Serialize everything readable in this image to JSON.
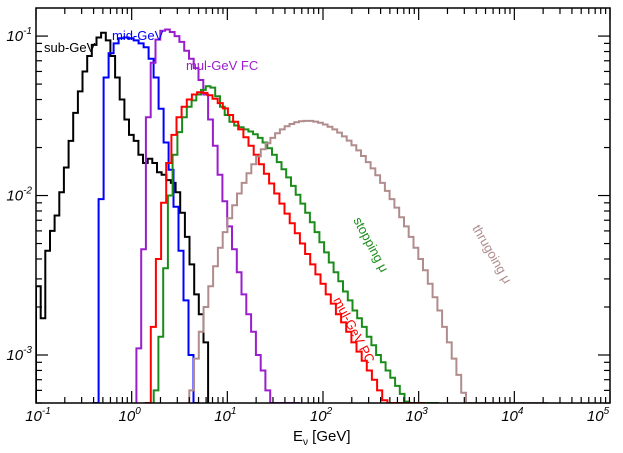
{
  "chart_data": {
    "type": "line",
    "xscale": "log",
    "yscale": "log",
    "xlim": [
      0.1,
      100000
    ],
    "ylim": [
      0.0005,
      0.15
    ],
    "xlabel": "Eν [GeV]",
    "xlabel_main": "E",
    "xlabel_sub": "ν",
    "xlabel_unit": " [GeV]",
    "ylabel": "",
    "grid": false,
    "x_ticks": [
      {
        "base": "10",
        "exp": "-1",
        "value": 0.1
      },
      {
        "base": "10",
        "exp": "0",
        "value": 1
      },
      {
        "base": "10",
        "exp": "1",
        "value": 10
      },
      {
        "base": "10",
        "exp": "2",
        "value": 100
      },
      {
        "base": "10",
        "exp": "3",
        "value": 1000
      },
      {
        "base": "10",
        "exp": "4",
        "value": 10000
      },
      {
        "base": "10",
        "exp": "5",
        "value": 100000
      }
    ],
    "y_ticks": [
      {
        "base": "10",
        "exp": "-3",
        "value": 0.001
      },
      {
        "base": "10",
        "exp": "-2",
        "value": 0.01
      },
      {
        "base": "10",
        "exp": "-1",
        "value": 0.1
      }
    ],
    "series": [
      {
        "name": "sub-GeV",
        "color": "#000000",
        "bins_per_decade": 20,
        "x_start": 0.1,
        "x_end": 6.3,
        "values": [
          0.0027,
          0.0017,
          0.0045,
          0.006,
          0.0075,
          0.0105,
          0.015,
          0.022,
          0.033,
          0.045,
          0.06,
          0.075,
          0.088,
          0.098,
          0.105,
          0.094,
          0.075,
          0.055,
          0.04,
          0.03,
          0.024,
          0.022,
          0.018,
          0.016,
          0.017,
          0.016,
          0.014,
          0.0135,
          0.0125,
          0.012,
          0.0105,
          0.0078,
          0.0055,
          0.0037,
          0.0024,
          0.0018,
          0.0012
        ]
      },
      {
        "name": "mid-GeV",
        "color": "#0000ff",
        "bins_per_decade": 20,
        "x_start": 0.4,
        "x_end": 5.0,
        "values": [
          0.0003,
          0.0095,
          0.055,
          0.078,
          0.09,
          0.097,
          0.098,
          0.097,
          0.094,
          0.09,
          0.085,
          0.072,
          0.055,
          0.035,
          0.0215,
          0.0145,
          0.0085,
          0.0045,
          0.0022,
          0.001,
          0.0003
        ]
      },
      {
        "name": "mul-GeV FC",
        "color": "#9a1ecc",
        "bins_per_decade": 20,
        "x_start": 1.12,
        "x_end": 56.0,
        "values": [
          0.0011,
          0.0046,
          0.031,
          0.068,
          0.095,
          0.108,
          0.11,
          0.106,
          0.1,
          0.092,
          0.081,
          0.072,
          0.063,
          0.053,
          0.043,
          0.03,
          0.0205,
          0.0135,
          0.0092,
          0.0064,
          0.0046,
          0.0033,
          0.0024,
          0.0018,
          0.0014,
          0.001,
          0.0008,
          0.0006,
          0.0005,
          0.0004,
          0.0003,
          0.0003,
          0.0003,
          0.0002
        ]
      },
      {
        "name": "stopping μ",
        "color": "#1a8c1a",
        "bins_per_decade": 20,
        "x_start": 1.7,
        "x_end": 1580,
        "values": [
          0.0006,
          0.0013,
          0.0035,
          0.01,
          0.018,
          0.025,
          0.031,
          0.036,
          0.0395,
          0.043,
          0.046,
          0.0485,
          0.0475,
          0.042,
          0.036,
          0.032,
          0.029,
          0.0275,
          0.0268,
          0.026,
          0.0252,
          0.0242,
          0.023,
          0.0215,
          0.0198,
          0.018,
          0.0162,
          0.0146,
          0.013,
          0.0115,
          0.0101,
          0.0089,
          0.0078,
          0.0068,
          0.0059,
          0.0051,
          0.0044,
          0.0038,
          0.0033,
          0.0029,
          0.0025,
          0.0022,
          0.0019,
          0.0017,
          0.0015,
          0.0013,
          0.00115,
          0.001,
          0.0009,
          0.0008,
          0.00072,
          0.00064,
          0.00057,
          0.00051,
          0.00045,
          0.0004,
          0.00035,
          0.0003,
          0.00025,
          0.0002
        ]
      },
      {
        "name": "mul-GeV PC",
        "color": "#ff0000",
        "bins_per_decade": 20,
        "x_start": 1.4,
        "x_end": 1120,
        "values": [
          0.0003,
          0.0015,
          0.004,
          0.009,
          0.016,
          0.024,
          0.031,
          0.036,
          0.04,
          0.043,
          0.0445,
          0.044,
          0.0425,
          0.0405,
          0.038,
          0.0352,
          0.032,
          0.029,
          0.026,
          0.0232,
          0.0205,
          0.018,
          0.0157,
          0.0137,
          0.0119,
          0.0103,
          0.0089,
          0.0077,
          0.0067,
          0.0058,
          0.005,
          0.0043,
          0.0037,
          0.0032,
          0.0028,
          0.0024,
          0.0021,
          0.0018,
          0.0016,
          0.0014,
          0.0012,
          0.00105,
          0.00092,
          0.0008,
          0.0007,
          0.0006,
          0.00052,
          0.00045,
          0.00038,
          0.00032,
          0.00026,
          0.0002,
          0.00015,
          0.0001
        ]
      },
      {
        "name": "thrugoing μ",
        "color": "#b08c8c",
        "bins_per_decade": 20,
        "x_start": 4.0,
        "x_end": 22000,
        "values": [
          0.0006,
          0.00095,
          0.0014,
          0.002,
          0.0027,
          0.0036,
          0.0047,
          0.0059,
          0.0072,
          0.0087,
          0.0103,
          0.012,
          0.0138,
          0.0157,
          0.0176,
          0.0195,
          0.0213,
          0.023,
          0.0246,
          0.026,
          0.0272,
          0.0281,
          0.0288,
          0.0292,
          0.0294,
          0.0294,
          0.0291,
          0.0286,
          0.0279,
          0.027,
          0.026,
          0.0248,
          0.0235,
          0.0221,
          0.0207,
          0.0192,
          0.0177,
          0.0162,
          0.0148,
          0.0134,
          0.012,
          0.0107,
          0.0095,
          0.0084,
          0.0073,
          0.0064,
          0.0055,
          0.0047,
          0.004,
          0.0034,
          0.0028,
          0.0023,
          0.0019,
          0.0015,
          0.0012,
          0.00095,
          0.00075,
          0.00058,
          0.00045,
          0.00035,
          0.00027,
          0.0002,
          0.00015,
          0.0001,
          0.0001,
          0.0001,
          0.0001,
          0.0001,
          0.0001,
          0.0001,
          0.0001,
          0.0001,
          0.0001,
          0.0001,
          0.0001
        ]
      }
    ]
  }
}
